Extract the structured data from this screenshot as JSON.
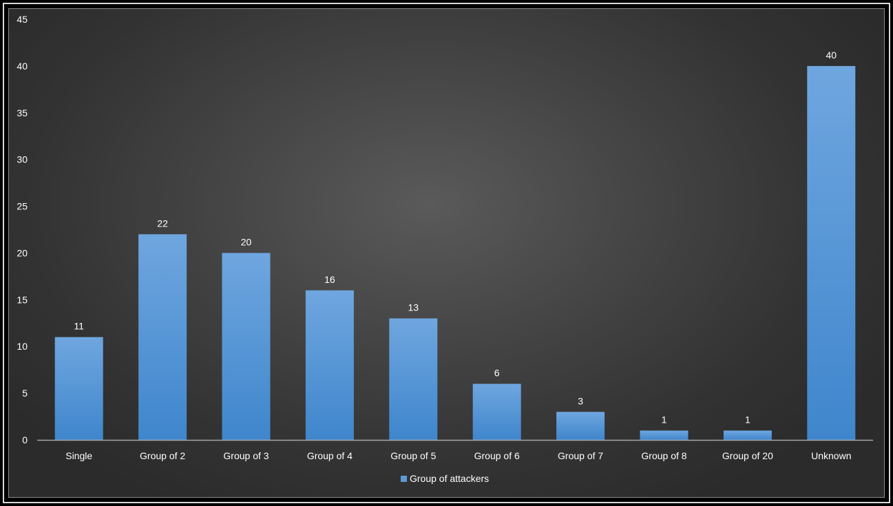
{
  "chart_data": {
    "type": "bar",
    "categories": [
      "Single",
      "Group of 2",
      "Group of 3",
      "Group of 4",
      "Group of 5",
      "Group of 6",
      "Group of 7",
      "Group of 8",
      "Group of 20",
      "Unknown"
    ],
    "series": [
      {
        "name": "Group of attackers",
        "values": [
          11,
          22,
          20,
          16,
          13,
          6,
          3,
          1,
          1,
          40
        ]
      }
    ],
    "yticks": [
      "0",
      "5",
      "10",
      "15",
      "20",
      "25",
      "30",
      "35",
      "40",
      "45"
    ],
    "ylim": [
      0,
      45
    ],
    "title": "",
    "xlabel": "",
    "ylabel": "",
    "legend_position": "bottom",
    "grid": false,
    "data_labels": true,
    "colors": {
      "bar_top": "#6fa6df",
      "bar_bottom": "#3f86cc",
      "legend_swatch": "#5b9bd5",
      "text": "#ffffff",
      "axis": "#a6a6a6"
    }
  }
}
